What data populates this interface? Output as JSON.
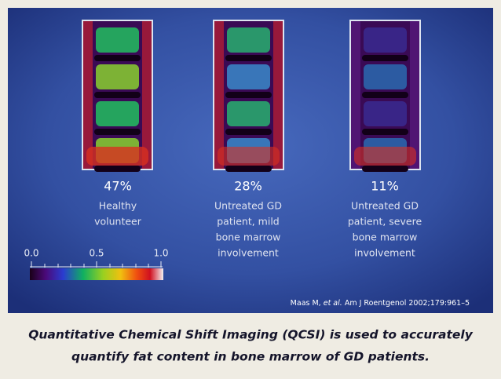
{
  "panels": [
    {
      "percent": "47%",
      "label_lines": [
        "Healthy",
        "volunteer"
      ]
    },
    {
      "percent": "28%",
      "label_lines": [
        "Untreated GD",
        "patient, mild",
        "bone marrow",
        "involvement"
      ]
    },
    {
      "percent": "11%",
      "label_lines": [
        "Untreated GD",
        "patient, severe",
        "bone marrow",
        "involvement"
      ]
    }
  ],
  "colorbar": {
    "labels": [
      "0.0",
      "0.5",
      "1.0"
    ]
  },
  "citation": {
    "authors": "Maas M, ",
    "etal": "et al.",
    "rest": " Am J Roentgenol 2002;179:961–5"
  },
  "caption": {
    "lines": [
      "Quantitative Chemical Shift Imaging (QCSI) is used to accurately",
      "quantify fat content in bone marrow of GD patients."
    ]
  }
}
